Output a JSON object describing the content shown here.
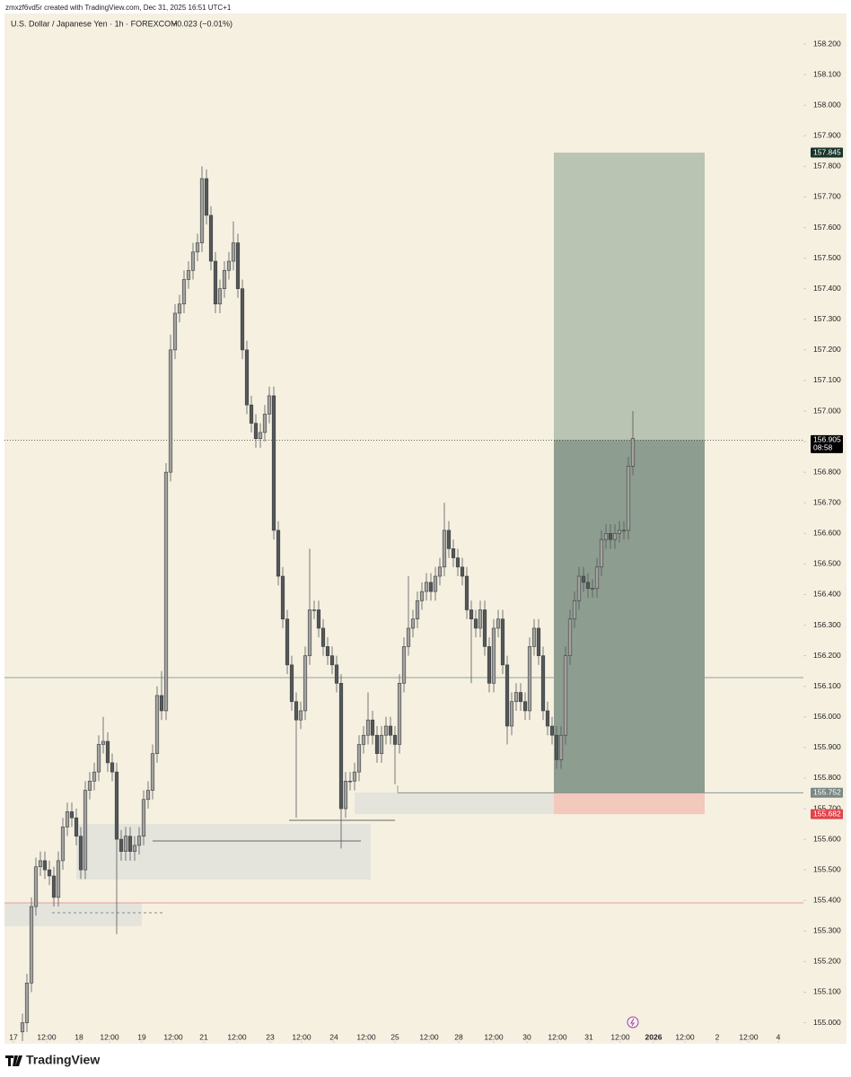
{
  "header": {
    "credit": "zmxzf6vd5r created with TradingView.com, Dec 31, 2025 16:51 UTC+1",
    "symbol": "U.S. Dollar / Japanese Yen · 1h · FOREXCOM",
    "change": "−0.023 (−0.01%)"
  },
  "footer": {
    "brand": "TradingView"
  },
  "chart_data": {
    "type": "candlestick",
    "up_color": "#a3a3a0",
    "down_color": "#55585a",
    "wick_color": "#55585a",
    "xlim": [
      -4,
      174
    ],
    "ylim": [
      154.94,
      158.3
    ],
    "xticks": [
      {
        "value": -2,
        "label": "17"
      },
      {
        "value": 5.4,
        "label": "12:00"
      },
      {
        "value": 12.6,
        "label": "18"
      },
      {
        "value": 19.4,
        "label": "12:00"
      },
      {
        "value": 26.6,
        "label": "19"
      },
      {
        "value": 33.6,
        "label": "12:00"
      },
      {
        "value": 40.4,
        "label": "21"
      },
      {
        "value": 47.8,
        "label": "12:00"
      },
      {
        "value": 55.2,
        "label": "23"
      },
      {
        "value": 62.2,
        "label": "12:00"
      },
      {
        "value": 69.4,
        "label": "24"
      },
      {
        "value": 76.6,
        "label": "12:00"
      },
      {
        "value": 83,
        "label": "25"
      },
      {
        "value": 90.6,
        "label": "12:00"
      },
      {
        "value": 97.2,
        "label": "28"
      },
      {
        "value": 105,
        "label": "12:00"
      },
      {
        "value": 112.4,
        "label": "30"
      },
      {
        "value": 119.2,
        "label": "12:00"
      },
      {
        "value": 126.2,
        "label": "31"
      },
      {
        "value": 133.2,
        "label": "12:00"
      },
      {
        "value": 140.6,
        "label": "2026"
      },
      {
        "value": 147.6,
        "label": "12:00"
      },
      {
        "value": 154.8,
        "label": "2"
      },
      {
        "value": 161.8,
        "label": "12:00"
      },
      {
        "value": 168.4,
        "label": "4"
      }
    ],
    "yticks": [
      {
        "value": 155.0,
        "label": "155.000"
      },
      {
        "value": 155.1,
        "label": "155.100"
      },
      {
        "value": 155.2,
        "label": "155.200"
      },
      {
        "value": 155.3,
        "label": "155.300"
      },
      {
        "value": 155.4,
        "label": "155.400"
      },
      {
        "value": 155.5,
        "label": "155.500"
      },
      {
        "value": 155.6,
        "label": "155.600"
      },
      {
        "value": 155.7,
        "label": "155.700"
      },
      {
        "value": 155.8,
        "label": "155.800"
      },
      {
        "value": 155.9,
        "label": "155.900"
      },
      {
        "value": 156.0,
        "label": "156.000"
      },
      {
        "value": 156.1,
        "label": "156.100"
      },
      {
        "value": 156.2,
        "label": "156.200"
      },
      {
        "value": 156.3,
        "label": "156.300"
      },
      {
        "value": 156.4,
        "label": "156.400"
      },
      {
        "value": 156.5,
        "label": "156.500"
      },
      {
        "value": 156.6,
        "label": "156.600"
      },
      {
        "value": 156.7,
        "label": "156.700"
      },
      {
        "value": 156.8,
        "label": "156.800"
      },
      {
        "value": 156.9,
        "label": "156.900"
      },
      {
        "value": 157.0,
        "label": "157.000"
      },
      {
        "value": 157.1,
        "label": "157.100"
      },
      {
        "value": 157.2,
        "label": "157.200"
      },
      {
        "value": 157.3,
        "label": "157.300"
      },
      {
        "value": 157.4,
        "label": "157.400"
      },
      {
        "value": 157.5,
        "label": "157.500"
      },
      {
        "value": 157.6,
        "label": "157.600"
      },
      {
        "value": 157.7,
        "label": "157.700"
      },
      {
        "value": 157.8,
        "label": "157.800"
      },
      {
        "value": 157.9,
        "label": "157.900"
      },
      {
        "value": 158.0,
        "label": "158.000"
      },
      {
        "value": 158.1,
        "label": "158.100"
      },
      {
        "value": 158.2,
        "label": "158.200"
      }
    ],
    "levels": [
      {
        "value": 157.845,
        "label": "157.845",
        "color": "#17352a"
      },
      {
        "value": 156.905,
        "label": "156.905",
        "sublabel": "08:58",
        "color": "#000000"
      },
      {
        "value": 155.752,
        "label": "155.752",
        "color": "#7b8884"
      },
      {
        "value": 155.682,
        "label": "155.682",
        "color": "#e2434b"
      }
    ],
    "open": [
      154.97,
      155.0,
      155.13,
      155.38,
      155.51,
      155.53,
      155.5,
      155.48,
      155.41,
      155.53,
      155.64,
      155.69,
      155.67,
      155.61,
      155.5,
      155.76,
      155.79,
      155.82,
      155.91,
      155.92,
      155.85,
      155.82,
      155.6,
      155.56,
      155.61,
      155.56,
      155.58,
      155.61,
      155.73,
      155.76,
      155.88,
      156.07,
      156.02,
      156.8,
      157.2,
      157.32,
      157.35,
      157.43,
      157.46,
      157.52,
      157.55,
      157.76,
      157.64,
      157.49,
      157.35,
      157.4,
      157.46,
      157.49,
      157.55,
      157.4,
      157.2,
      157.02,
      156.96,
      156.91,
      156.93,
      156.99,
      157.05,
      156.61,
      156.46,
      156.32,
      156.17,
      156.05,
      155.99,
      156.02,
      156.2,
      156.35,
      156.35,
      156.29,
      156.23,
      156.2,
      156.17,
      156.11,
      155.7,
      155.79,
      155.79,
      155.82,
      155.91,
      155.94,
      155.99,
      155.94,
      155.88,
      155.94,
      155.97,
      155.94,
      155.91,
      156.11,
      156.23,
      156.29,
      156.32,
      156.38,
      156.41,
      156.44,
      156.41,
      156.46,
      156.49,
      156.61,
      156.55,
      156.52,
      156.49,
      156.46,
      156.35,
      156.32,
      156.29,
      156.35,
      156.23,
      156.11,
      156.29,
      156.32,
      156.17,
      155.97,
      156.05,
      156.08,
      156.05,
      156.02,
      156.23,
      156.29,
      156.2,
      156.02,
      155.97,
      155.94,
      155.86,
      155.94,
      156.2,
      156.32,
      156.38,
      156.46,
      156.44,
      156.42,
      156.42,
      156.49,
      156.58,
      156.6,
      156.58,
      156.6,
      156.61,
      156.61,
      156.82
    ],
    "high": [
      155.03,
      155.16,
      155.41,
      155.54,
      155.56,
      155.56,
      155.53,
      155.51,
      155.56,
      155.67,
      155.72,
      155.72,
      155.7,
      155.64,
      155.79,
      155.82,
      155.85,
      155.94,
      156.0,
      155.95,
      155.88,
      155.85,
      155.63,
      155.64,
      155.64,
      155.61,
      155.64,
      155.76,
      155.79,
      155.91,
      156.1,
      156.15,
      156.83,
      157.25,
      157.35,
      157.38,
      157.46,
      157.49,
      157.55,
      157.58,
      157.8,
      157.79,
      157.67,
      157.52,
      157.43,
      157.49,
      157.52,
      157.62,
      157.58,
      157.43,
      157.23,
      157.05,
      156.99,
      156.96,
      157.02,
      157.08,
      157.08,
      156.64,
      156.49,
      156.35,
      156.2,
      156.08,
      156.05,
      156.23,
      156.55,
      156.38,
      156.38,
      156.32,
      156.26,
      156.23,
      156.2,
      156.14,
      155.82,
      155.82,
      155.85,
      155.94,
      155.97,
      156.08,
      156.02,
      155.97,
      155.97,
      156.0,
      156.0,
      155.97,
      156.14,
      156.26,
      156.46,
      156.35,
      156.41,
      156.44,
      156.47,
      156.47,
      156.49,
      156.52,
      156.7,
      156.64,
      156.58,
      156.55,
      156.52,
      156.49,
      156.38,
      156.35,
      156.38,
      156.38,
      156.26,
      156.32,
      156.35,
      156.35,
      156.2,
      156.08,
      156.11,
      156.11,
      156.08,
      156.26,
      156.32,
      156.32,
      156.23,
      156.05,
      156.0,
      155.97,
      155.97,
      156.23,
      156.35,
      156.41,
      156.49,
      156.49,
      156.47,
      156.45,
      156.52,
      156.61,
      156.63,
      156.63,
      156.63,
      156.64,
      156.64,
      156.85,
      157.0
    ],
    "low": [
      154.94,
      154.97,
      155.1,
      155.35,
      155.48,
      155.47,
      155.45,
      155.38,
      155.38,
      155.5,
      155.61,
      155.64,
      155.58,
      155.47,
      155.47,
      155.73,
      155.76,
      155.79,
      155.88,
      155.82,
      155.79,
      155.29,
      155.53,
      155.53,
      155.53,
      155.53,
      155.55,
      155.58,
      155.7,
      155.73,
      155.85,
      155.99,
      155.99,
      156.77,
      157.17,
      157.29,
      157.32,
      157.4,
      157.43,
      157.49,
      157.52,
      157.61,
      157.46,
      157.32,
      157.32,
      157.37,
      157.43,
      157.46,
      157.37,
      157.17,
      156.99,
      156.93,
      156.88,
      156.88,
      156.9,
      156.96,
      156.58,
      156.43,
      156.29,
      156.14,
      156.02,
      155.67,
      155.96,
      155.99,
      156.17,
      156.32,
      156.26,
      156.2,
      156.17,
      156.14,
      156.08,
      155.57,
      155.67,
      155.76,
      155.76,
      155.79,
      155.88,
      155.91,
      155.91,
      155.85,
      155.85,
      155.91,
      155.91,
      155.78,
      155.88,
      156.08,
      156.2,
      156.26,
      156.29,
      156.35,
      156.38,
      156.38,
      156.38,
      156.43,
      156.46,
      156.52,
      156.49,
      156.46,
      156.43,
      156.32,
      156.11,
      156.26,
      156.26,
      156.2,
      156.08,
      156.08,
      156.26,
      156.14,
      155.91,
      155.94,
      156.02,
      156.02,
      155.99,
      155.99,
      156.2,
      156.17,
      155.99,
      155.94,
      155.91,
      155.83,
      155.83,
      155.91,
      156.17,
      156.29,
      156.35,
      156.41,
      156.39,
      156.39,
      156.39,
      156.46,
      156.55,
      156.55,
      156.55,
      156.57,
      156.58,
      156.58,
      156.79
    ],
    "close": [
      155.0,
      155.13,
      155.38,
      155.51,
      155.53,
      155.5,
      155.48,
      155.41,
      155.53,
      155.64,
      155.69,
      155.67,
      155.61,
      155.5,
      155.76,
      155.79,
      155.82,
      155.91,
      155.92,
      155.85,
      155.82,
      155.6,
      155.56,
      155.61,
      155.56,
      155.58,
      155.61,
      155.73,
      155.76,
      155.88,
      156.07,
      156.02,
      156.8,
      157.2,
      157.32,
      157.35,
      157.43,
      157.46,
      157.52,
      157.55,
      157.76,
      157.64,
      157.49,
      157.35,
      157.4,
      157.46,
      157.49,
      157.55,
      157.4,
      157.2,
      157.02,
      156.96,
      156.91,
      156.93,
      156.99,
      157.05,
      156.61,
      156.46,
      156.32,
      156.17,
      156.05,
      155.99,
      156.02,
      156.2,
      156.35,
      156.35,
      156.29,
      156.23,
      156.2,
      156.17,
      156.11,
      155.7,
      155.79,
      155.79,
      155.82,
      155.91,
      155.94,
      155.99,
      155.94,
      155.88,
      155.94,
      155.97,
      155.94,
      155.91,
      156.11,
      156.23,
      156.29,
      156.32,
      156.38,
      156.41,
      156.44,
      156.41,
      156.46,
      156.49,
      156.61,
      156.55,
      156.52,
      156.49,
      156.46,
      156.35,
      156.32,
      156.29,
      156.35,
      156.23,
      156.11,
      156.29,
      156.32,
      156.17,
      155.97,
      156.05,
      156.08,
      156.05,
      156.02,
      156.23,
      156.29,
      156.2,
      156.02,
      155.97,
      155.94,
      155.86,
      155.94,
      156.2,
      156.32,
      156.38,
      156.46,
      156.44,
      156.42,
      156.42,
      156.49,
      156.58,
      156.6,
      156.58,
      156.6,
      156.61,
      156.61,
      156.82,
      156.91
    ]
  }
}
